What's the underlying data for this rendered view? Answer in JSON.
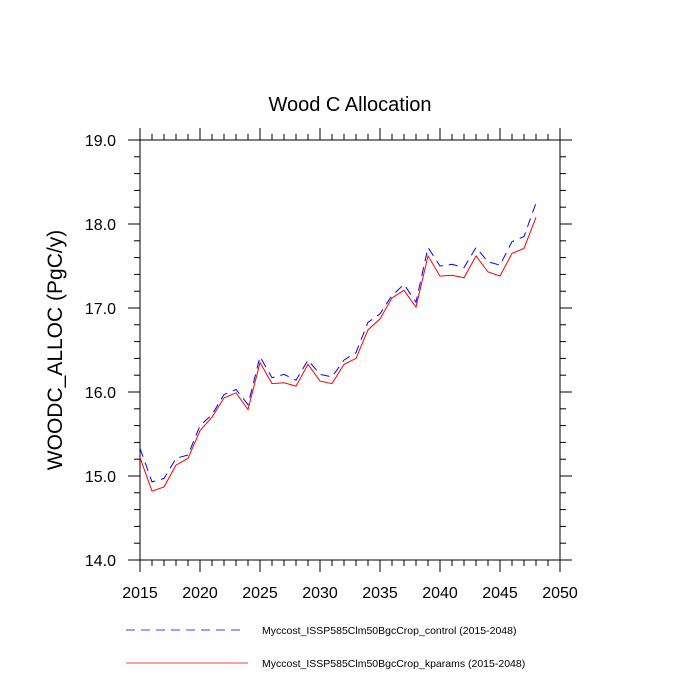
{
  "chart_data": {
    "type": "line",
    "title": "Wood C Allocation",
    "xlabel": "",
    "ylabel": "WOODC_ALLOC  (PgC/y)",
    "xlim": [
      2015,
      2050
    ],
    "ylim": [
      14.0,
      19.0
    ],
    "x_ticks": [
      2015,
      2020,
      2025,
      2030,
      2035,
      2040,
      2045,
      2050
    ],
    "x_tick_labels": [
      "2015",
      "2020",
      "2025",
      "2030",
      "2035",
      "2040",
      "2045",
      "2050"
    ],
    "y_ticks": [
      14.0,
      15.0,
      16.0,
      17.0,
      18.0,
      19.0
    ],
    "y_tick_labels": [
      "14.0",
      "15.0",
      "16.0",
      "17.0",
      "18.0",
      "19.0"
    ],
    "grid": false,
    "legend_position": "bottom",
    "x": [
      2015,
      2016,
      2017,
      2018,
      2019,
      2020,
      2021,
      2022,
      2023,
      2024,
      2025,
      2026,
      2027,
      2028,
      2029,
      2030,
      2031,
      2032,
      2033,
      2034,
      2035,
      2036,
      2037,
      2038,
      2039,
      2040,
      2041,
      2042,
      2043,
      2044,
      2045,
      2046,
      2047,
      2048
    ],
    "series": [
      {
        "name": "Myccost_ISSP585Clm50BgcCrop_control (2015-2048)",
        "color": "#0000ff",
        "dash": "dashed",
        "values": [
          15.33,
          14.93,
          14.97,
          15.21,
          15.25,
          15.6,
          15.73,
          15.97,
          16.03,
          15.85,
          16.42,
          16.17,
          16.21,
          16.14,
          16.38,
          16.21,
          16.18,
          16.38,
          16.47,
          16.83,
          16.93,
          17.15,
          17.28,
          17.07,
          17.72,
          17.5,
          17.52,
          17.48,
          17.72,
          17.55,
          17.51,
          17.79,
          17.85,
          18.25
        ]
      },
      {
        "name": "Myccost_ISSP585Clm50BgcCrop_kparams (2015-2048)",
        "color": "#ff0000",
        "dash": "solid",
        "values": [
          15.22,
          14.82,
          14.87,
          15.13,
          15.21,
          15.54,
          15.7,
          15.93,
          15.99,
          15.79,
          16.35,
          16.1,
          16.11,
          16.07,
          16.33,
          16.13,
          16.1,
          16.33,
          16.4,
          16.74,
          16.87,
          17.12,
          17.21,
          17.01,
          17.62,
          17.38,
          17.39,
          17.36,
          17.62,
          17.43,
          17.38,
          17.65,
          17.71,
          18.08
        ]
      }
    ]
  }
}
